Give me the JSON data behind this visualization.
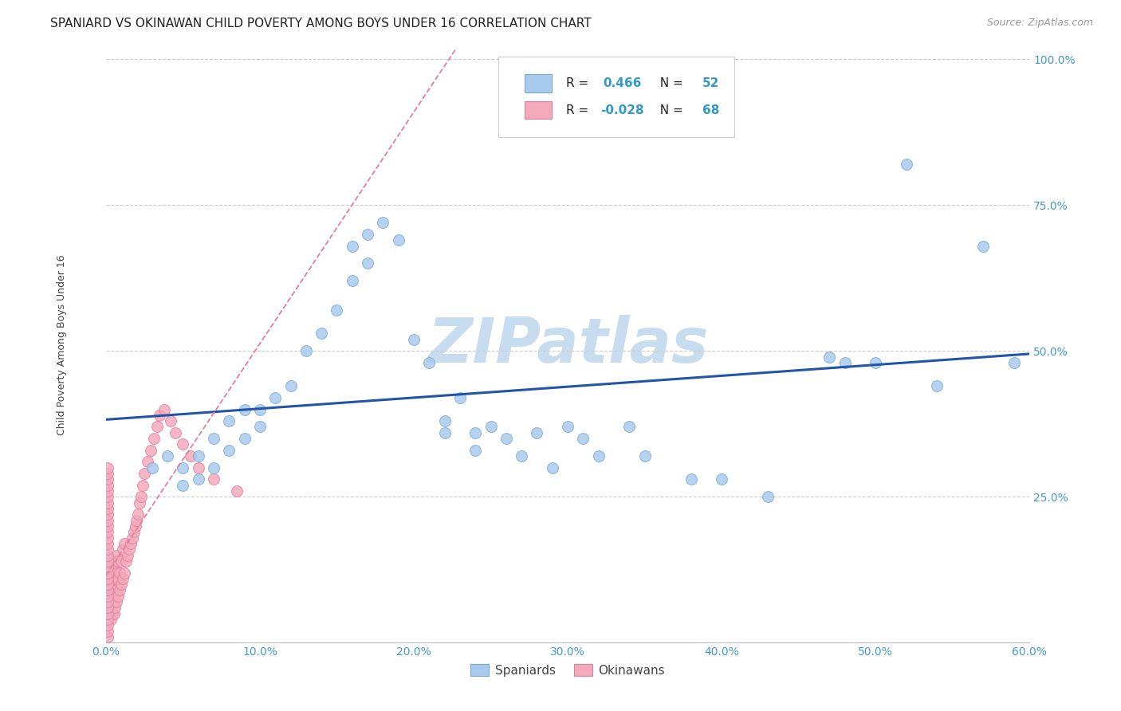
{
  "title": "SPANIARD VS OKINAWAN CHILD POVERTY AMONG BOYS UNDER 16 CORRELATION CHART",
  "source": "Source: ZipAtlas.com",
  "xlabel_ticks": [
    "0.0%",
    "10.0%",
    "20.0%",
    "30.0%",
    "40.0%",
    "50.0%",
    "60.0%"
  ],
  "xlabel_vals": [
    0.0,
    0.1,
    0.2,
    0.3,
    0.4,
    0.5,
    0.6
  ],
  "ylabel_ticks": [
    "100.0%",
    "75.0%",
    "50.0%",
    "25.0%"
  ],
  "ylabel_vals": [
    1.0,
    0.75,
    0.5,
    0.25
  ],
  "ylabel": "Child Poverty Among Boys Under 16",
  "watermark": "ZIPatlas",
  "legend_blue_R": "0.466",
  "legend_blue_N": "52",
  "legend_pink_R": "-0.028",
  "legend_pink_N": "68",
  "blue_scatter_color": "#A8CAEE",
  "pink_scatter_color": "#F4AABB",
  "blue_edge_color": "#7AAAD0",
  "pink_edge_color": "#E080A0",
  "blue_line_color": "#2255AA",
  "pink_line_color": "#E080A0",
  "spaniards_x": [
    0.03,
    0.04,
    0.05,
    0.05,
    0.06,
    0.06,
    0.07,
    0.07,
    0.08,
    0.08,
    0.09,
    0.09,
    0.1,
    0.1,
    0.11,
    0.12,
    0.13,
    0.14,
    0.15,
    0.16,
    0.16,
    0.17,
    0.17,
    0.18,
    0.19,
    0.2,
    0.21,
    0.22,
    0.22,
    0.23,
    0.24,
    0.24,
    0.25,
    0.26,
    0.27,
    0.28,
    0.29,
    0.3,
    0.31,
    0.32,
    0.34,
    0.35,
    0.38,
    0.4,
    0.43,
    0.47,
    0.48,
    0.5,
    0.52,
    0.54,
    0.57,
    0.59
  ],
  "spaniards_y": [
    0.3,
    0.32,
    0.3,
    0.27,
    0.32,
    0.28,
    0.35,
    0.3,
    0.38,
    0.33,
    0.4,
    0.35,
    0.37,
    0.4,
    0.42,
    0.44,
    0.5,
    0.53,
    0.57,
    0.68,
    0.62,
    0.7,
    0.65,
    0.72,
    0.69,
    0.52,
    0.48,
    0.38,
    0.36,
    0.42,
    0.36,
    0.33,
    0.37,
    0.35,
    0.32,
    0.36,
    0.3,
    0.37,
    0.35,
    0.32,
    0.37,
    0.32,
    0.28,
    0.28,
    0.25,
    0.49,
    0.48,
    0.48,
    0.82,
    0.44,
    0.68,
    0.48
  ],
  "okinawans_x": [
    0.001,
    0.001,
    0.001,
    0.001,
    0.002,
    0.002,
    0.002,
    0.002,
    0.003,
    0.003,
    0.003,
    0.003,
    0.003,
    0.004,
    0.004,
    0.004,
    0.004,
    0.004,
    0.005,
    0.005,
    0.005,
    0.005,
    0.005,
    0.006,
    0.006,
    0.006,
    0.006,
    0.007,
    0.007,
    0.007,
    0.007,
    0.008,
    0.008,
    0.008,
    0.009,
    0.009,
    0.01,
    0.01,
    0.011,
    0.011,
    0.012,
    0.012,
    0.013,
    0.014,
    0.015,
    0.016,
    0.017,
    0.018,
    0.019,
    0.02,
    0.021,
    0.022,
    0.023,
    0.024,
    0.025,
    0.027,
    0.029,
    0.031,
    0.033,
    0.035,
    0.038,
    0.042,
    0.045,
    0.05,
    0.055,
    0.06,
    0.07,
    0.085
  ],
  "okinawans_y": [
    0.05,
    0.06,
    0.07,
    0.08,
    0.05,
    0.07,
    0.09,
    0.1,
    0.04,
    0.06,
    0.07,
    0.09,
    0.11,
    0.05,
    0.07,
    0.09,
    0.11,
    0.13,
    0.05,
    0.07,
    0.1,
    0.12,
    0.14,
    0.06,
    0.08,
    0.11,
    0.13,
    0.07,
    0.09,
    0.12,
    0.15,
    0.08,
    0.11,
    0.14,
    0.09,
    0.12,
    0.1,
    0.14,
    0.11,
    0.16,
    0.12,
    0.17,
    0.14,
    0.15,
    0.16,
    0.17,
    0.18,
    0.19,
    0.2,
    0.21,
    0.22,
    0.24,
    0.25,
    0.27,
    0.29,
    0.31,
    0.33,
    0.35,
    0.37,
    0.39,
    0.4,
    0.38,
    0.36,
    0.34,
    0.32,
    0.3,
    0.28,
    0.26
  ],
  "pink_cluster_x": [
    0.001,
    0.001,
    0.001,
    0.001,
    0.001,
    0.001,
    0.001,
    0.001,
    0.001,
    0.001,
    0.001,
    0.001,
    0.001,
    0.001,
    0.001,
    0.001,
    0.001,
    0.001,
    0.001,
    0.001,
    0.001,
    0.001,
    0.001,
    0.001,
    0.001,
    0.001,
    0.001,
    0.001,
    0.001,
    0.001
  ],
  "pink_cluster_y": [
    0.01,
    0.02,
    0.03,
    0.04,
    0.05,
    0.06,
    0.07,
    0.08,
    0.09,
    0.1,
    0.11,
    0.12,
    0.13,
    0.14,
    0.15,
    0.16,
    0.17,
    0.18,
    0.19,
    0.2,
    0.21,
    0.22,
    0.23,
    0.24,
    0.25,
    0.26,
    0.27,
    0.28,
    0.29,
    0.3
  ],
  "xlim": [
    0.0,
    0.6
  ],
  "ylim": [
    0.0,
    1.02
  ],
  "grid_color": "#CCCCCC",
  "background_color": "#FFFFFF",
  "title_fontsize": 11,
  "axis_label_fontsize": 9,
  "tick_fontsize": 10,
  "source_fontsize": 9,
  "watermark_color": "#C8DCF0",
  "watermark_fontsize": 56
}
